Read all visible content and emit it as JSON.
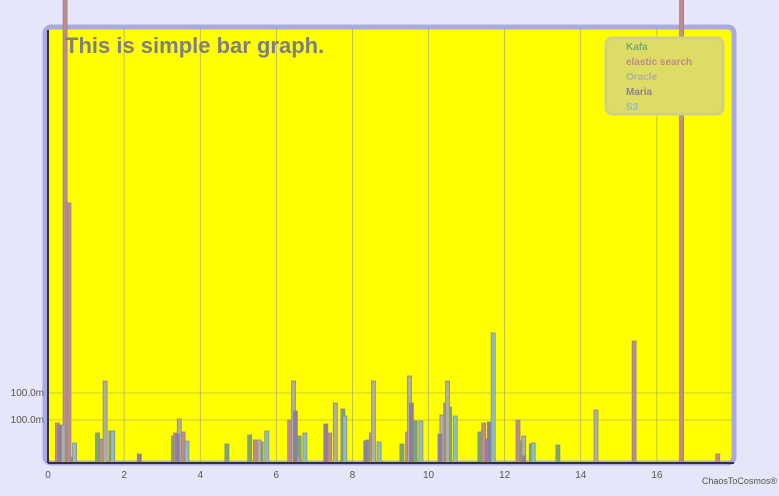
{
  "title": "This is simple bar graph.",
  "credit": "ChaosToCosmos®",
  "chart_data": {
    "type": "bar",
    "title": "This is simple bar graph.",
    "xlabel": "",
    "ylabel": "",
    "xlim": [
      0,
      18
    ],
    "x_ticks": [
      "0",
      "2",
      "4",
      "6",
      "8",
      "10",
      "12",
      "14",
      "16"
    ],
    "y_tick_labels": [
      "100.0m",
      "100.0m"
    ],
    "grid": true,
    "legend_position": "top-right",
    "colors": {
      "plot_background": "#ffff00",
      "page_background": "#e6e6fa",
      "frame": "#a9a9e6"
    },
    "series": [
      {
        "name": "Kafa",
        "color": "#7aa870",
        "points": [
          [
            0.6,
            6
          ],
          [
            1.3,
            30
          ],
          [
            1.65,
            32
          ],
          [
            3.3,
            27
          ],
          [
            4.7,
            19
          ],
          [
            5.3,
            28
          ],
          [
            5.6,
            21
          ],
          [
            6.6,
            27
          ],
          [
            7.4,
            29
          ],
          [
            7.75,
            54
          ],
          [
            8.4,
            23
          ],
          [
            9.3,
            19
          ],
          [
            9.65,
            42
          ],
          [
            10.55,
            56
          ],
          [
            11.35,
            31
          ],
          [
            12.4,
            22
          ],
          [
            12.7,
            19
          ],
          [
            13.4,
            18
          ]
        ]
      },
      {
        "name": "elastic search",
        "color": "#c28a8a",
        "points": [
          [
            0.25,
            40
          ],
          [
            0.45,
            520
          ],
          [
            0.55,
            260
          ],
          [
            1.4,
            24
          ],
          [
            3.35,
            30
          ],
          [
            3.55,
            31
          ],
          [
            5.45,
            23
          ],
          [
            6.35,
            43
          ],
          [
            7.4,
            30
          ],
          [
            8.5,
            30
          ],
          [
            9.45,
            31
          ],
          [
            10.45,
            60
          ],
          [
            11.45,
            40
          ],
          [
            12.35,
            43
          ],
          [
            15.4,
            122
          ],
          [
            16.65,
            465
          ],
          [
            17.6,
            9
          ]
        ]
      },
      {
        "name": "Oracle",
        "color": "#b0b0a0",
        "points": [
          [
            0.4,
            38
          ],
          [
            1.5,
            82
          ],
          [
            3.45,
            44
          ],
          [
            5.55,
            23
          ],
          [
            6.45,
            82
          ],
          [
            6.55,
            7
          ],
          [
            7.55,
            60
          ],
          [
            8.55,
            82
          ],
          [
            9.5,
            87
          ],
          [
            10.35,
            48
          ],
          [
            10.5,
            82
          ],
          [
            12.5,
            27
          ],
          [
            14.4,
            53
          ]
        ]
      },
      {
        "name": "Maria",
        "color": "#8e7fa0",
        "points": [
          [
            0.3,
            38
          ],
          [
            2.4,
            9
          ],
          [
            3.4,
            29
          ],
          [
            6.5,
            52
          ],
          [
            7.3,
            39
          ],
          [
            8.35,
            22
          ],
          [
            9.55,
            60
          ],
          [
            10.3,
            29
          ],
          [
            11.55,
            24
          ],
          [
            11.6,
            41
          ],
          [
            12.5,
            7
          ]
        ]
      },
      {
        "name": "S3",
        "color": "#8cc0c0",
        "points": [
          [
            0.7,
            20
          ],
          [
            1.7,
            32
          ],
          [
            3.65,
            22
          ],
          [
            5.75,
            32
          ],
          [
            6.75,
            30
          ],
          [
            7.8,
            47
          ],
          [
            8.7,
            21
          ],
          [
            9.8,
            42
          ],
          [
            10.7,
            47
          ],
          [
            11.7,
            130
          ],
          [
            12.75,
            20
          ]
        ]
      }
    ]
  }
}
